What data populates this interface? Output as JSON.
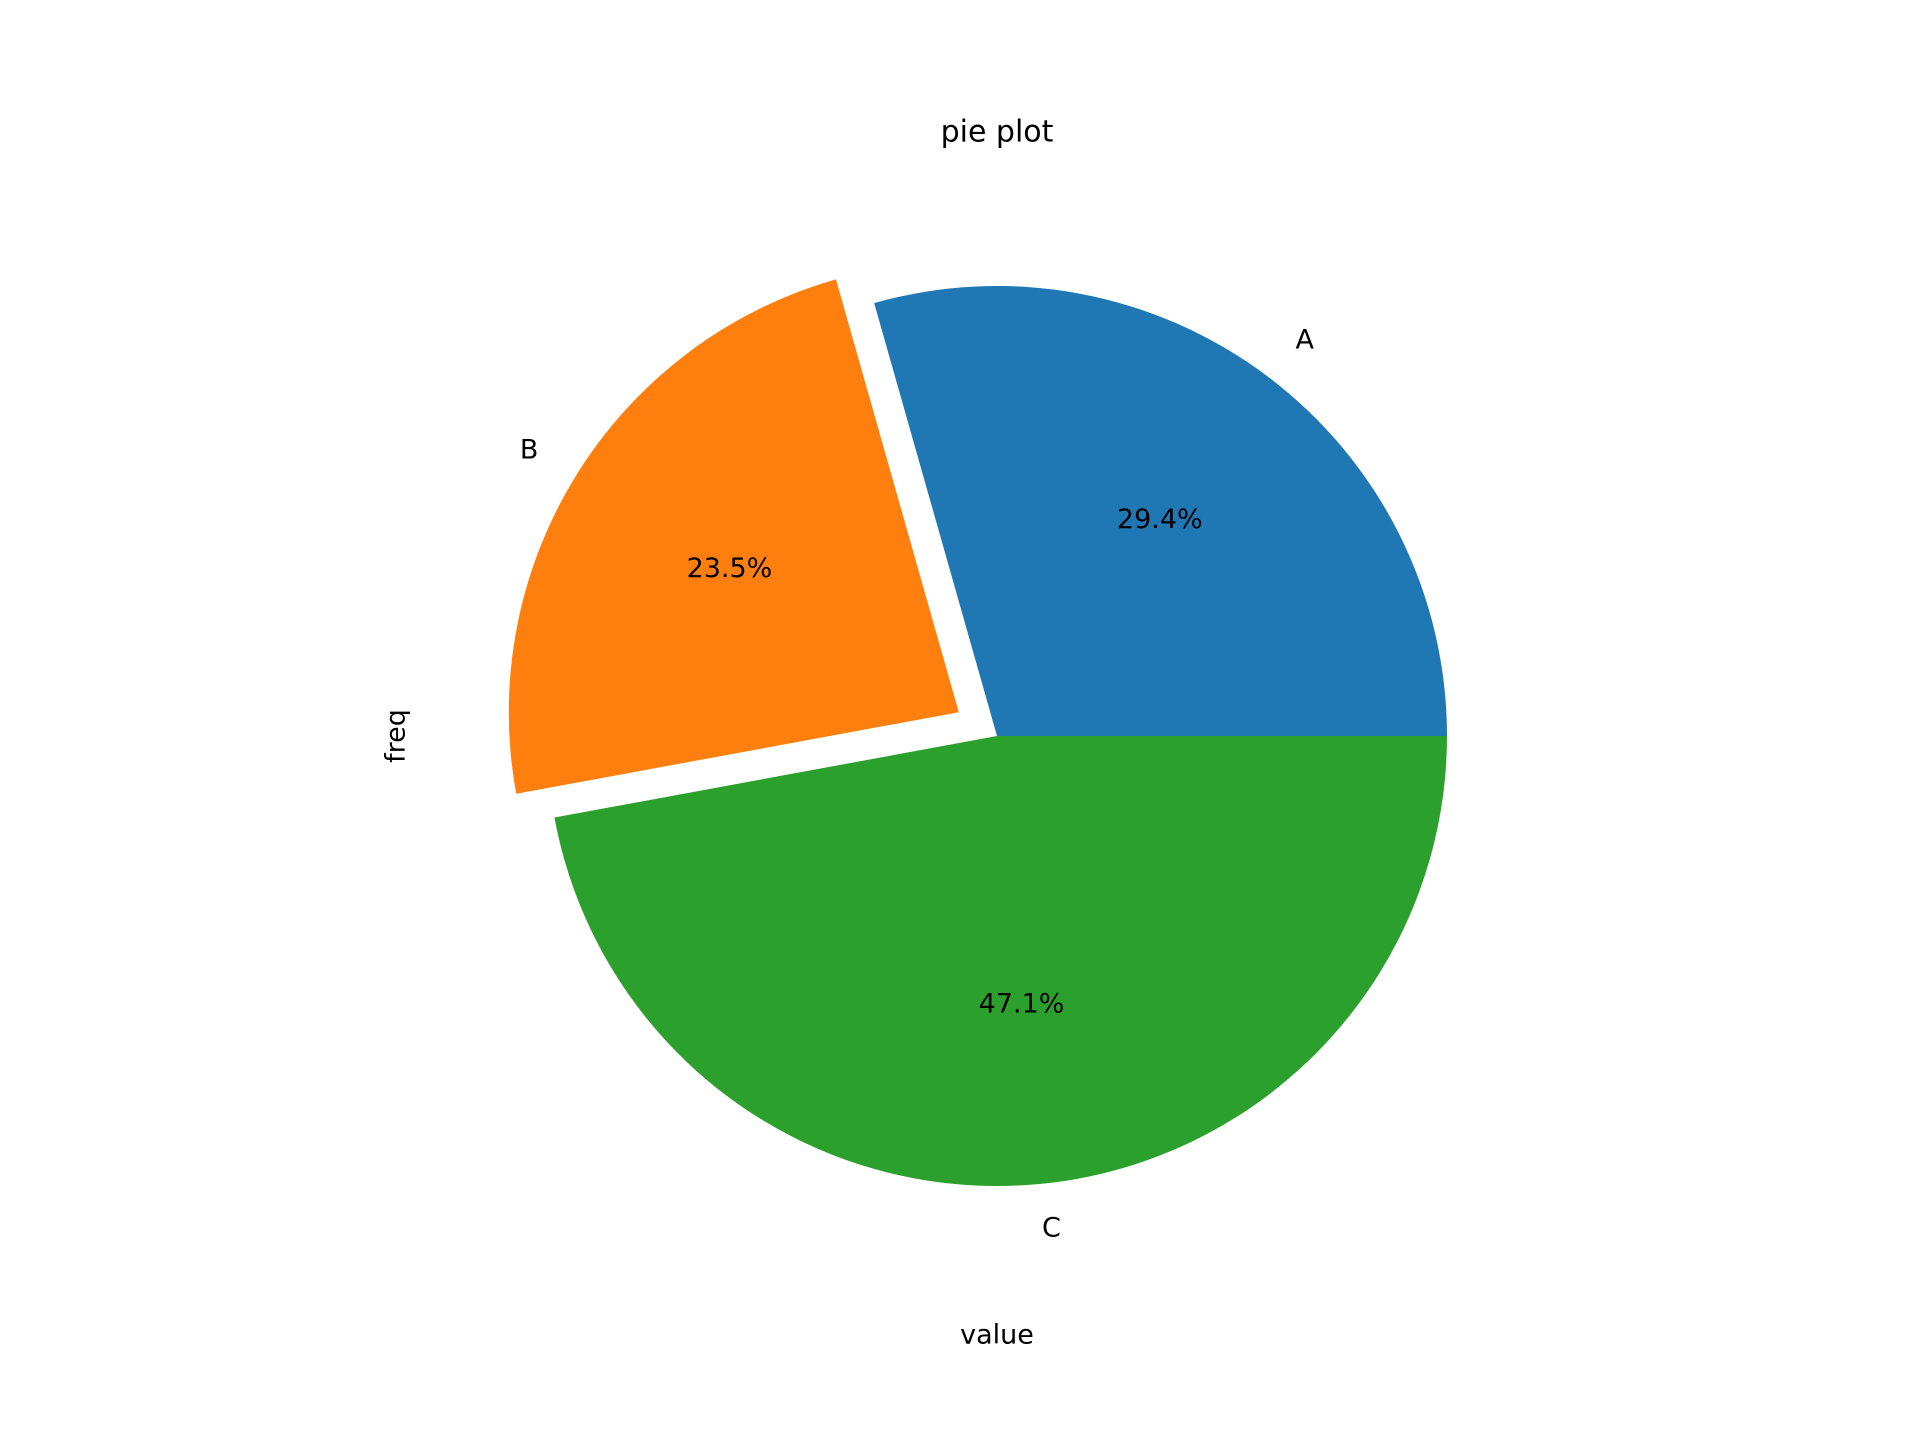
{
  "chart_data": {
    "type": "pie",
    "title": "pie plot",
    "x_label": "value",
    "y_label": "freq",
    "categories": [
      "A",
      "B",
      "C"
    ],
    "values": [
      29.4,
      23.5,
      47.1
    ],
    "value_labels": [
      "29.4%",
      "23.5%",
      "47.1%"
    ],
    "colors": [
      "#1f77b4",
      "#ff7f0e",
      "#2ca02c"
    ],
    "explode": [
      0,
      0.1,
      0
    ]
  }
}
